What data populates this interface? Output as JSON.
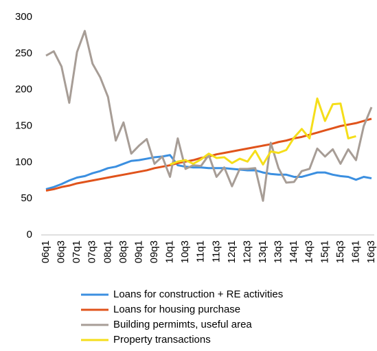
{
  "chart_data": {
    "type": "line",
    "categories": [
      "06q1",
      null,
      "06q3",
      null,
      "07q1",
      null,
      "07q3",
      null,
      "08q1",
      null,
      "08q3",
      null,
      "09q1",
      null,
      "09q3",
      null,
      "10q1",
      null,
      "10q3",
      null,
      "11q1",
      null,
      "11q3",
      null,
      "12q1",
      null,
      "12q3",
      null,
      "13q1",
      null,
      "13q3",
      null,
      "14q1",
      null,
      "14q3",
      null,
      "15q1",
      null,
      "15q3",
      null,
      "16q1",
      null,
      "16q3"
    ],
    "series": [
      {
        "name": "Loans for construction + RE activities",
        "color": "#3b8fe0",
        "values": [
          63,
          66,
          70,
          75,
          79,
          81,
          85,
          88,
          92,
          94,
          98,
          102,
          103,
          105,
          107,
          108,
          110,
          96,
          94,
          93,
          93,
          92,
          92,
          92,
          91,
          90,
          89,
          89,
          86,
          84,
          83,
          83,
          80,
          80,
          83,
          86,
          86,
          83,
          81,
          80,
          76,
          80,
          78
        ]
      },
      {
        "name": "Loans for housing purchase",
        "color": "#e0531b",
        "values": [
          61,
          63,
          66,
          68,
          71,
          73,
          75,
          77,
          79,
          81,
          83,
          85,
          87,
          89,
          92,
          94,
          96,
          99,
          101,
          103,
          106,
          108,
          111,
          113,
          115,
          117,
          119,
          121,
          123,
          125,
          128,
          130,
          133,
          135,
          138,
          141,
          144,
          147,
          150,
          152,
          154,
          157,
          160
        ]
      },
      {
        "name": "Building permimts, useful area",
        "color": "#a79d96",
        "values": [
          247,
          253,
          232,
          182,
          252,
          281,
          236,
          217,
          190,
          130,
          155,
          112,
          123,
          132,
          98,
          108,
          80,
          133,
          91,
          96,
          95,
          110,
          80,
          93,
          67,
          91,
          91,
          92,
          47,
          127,
          92,
          72,
          73,
          88,
          91,
          119,
          108,
          118,
          98,
          118,
          103,
          150,
          176
        ]
      },
      {
        "name": "Property transactions",
        "color": "#f5de1a",
        "values": [
          null,
          null,
          null,
          null,
          null,
          null,
          null,
          null,
          null,
          null,
          null,
          null,
          null,
          null,
          null,
          null,
          97,
          101,
          103,
          98,
          104,
          112,
          106,
          107,
          99,
          105,
          101,
          116,
          97,
          115,
          113,
          117,
          134,
          146,
          133,
          188,
          157,
          180,
          181,
          133,
          136,
          null,
          null
        ]
      }
    ],
    "ylim": [
      0,
      300
    ],
    "yticks": [
      0,
      50,
      100,
      150,
      200,
      250,
      300
    ]
  }
}
